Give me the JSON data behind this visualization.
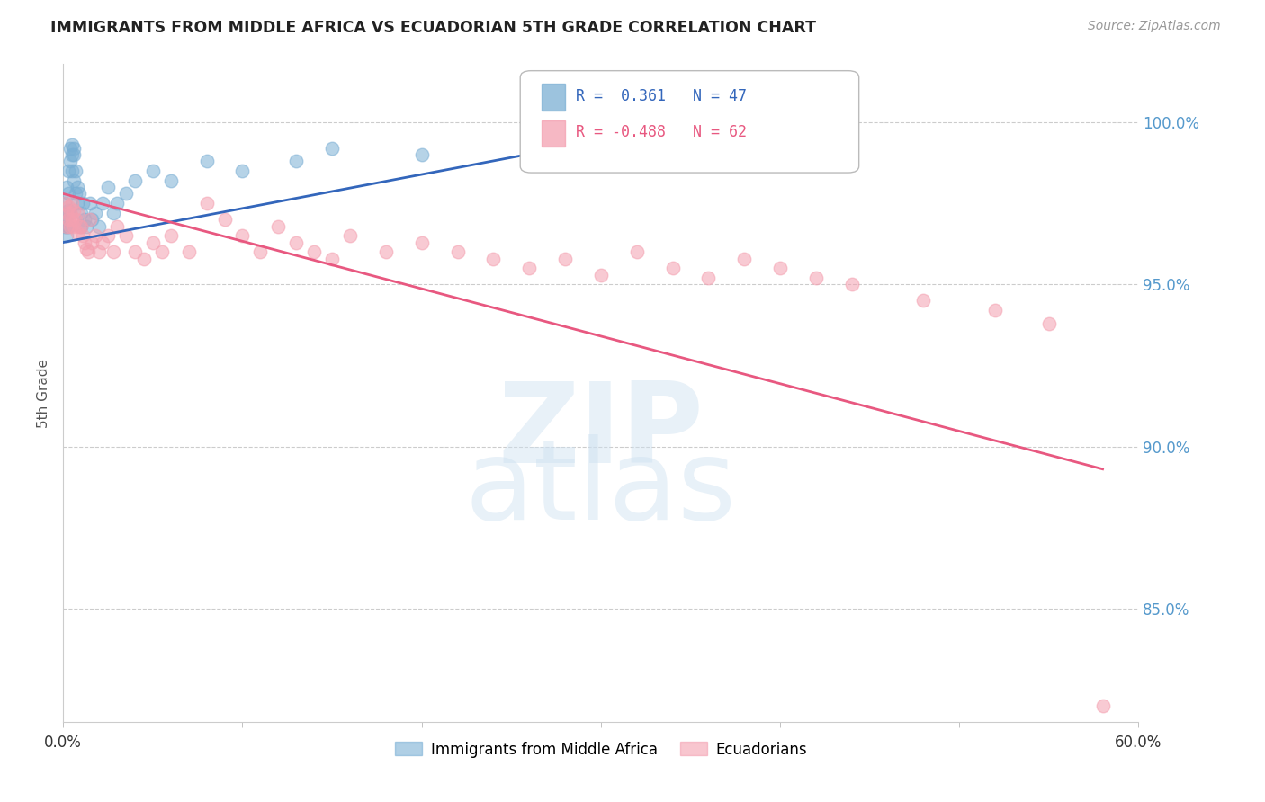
{
  "title": "IMMIGRANTS FROM MIDDLE AFRICA VS ECUADORIAN 5TH GRADE CORRELATION CHART",
  "source": "Source: ZipAtlas.com",
  "ylabel": "5th Grade",
  "ytick_labels": [
    "100.0%",
    "95.0%",
    "90.0%",
    "85.0%"
  ],
  "ytick_values": [
    1.0,
    0.95,
    0.9,
    0.85
  ],
  "xlim": [
    0.0,
    0.6
  ],
  "ylim": [
    0.815,
    1.018
  ],
  "blue_R": 0.361,
  "blue_N": 47,
  "pink_R": -0.488,
  "pink_N": 62,
  "legend_blue": "Immigrants from Middle Africa",
  "legend_pink": "Ecuadorians",
  "blue_color": "#7BAFD4",
  "pink_color": "#F4A0B0",
  "blue_line_color": "#3366BB",
  "pink_line_color": "#E85880",
  "title_color": "#222222",
  "source_color": "#999999",
  "axis_label_color": "#555555",
  "ytick_color": "#5599CC",
  "blue_scatter_x": [
    0.001,
    0.001,
    0.001,
    0.002,
    0.002,
    0.002,
    0.002,
    0.003,
    0.003,
    0.003,
    0.003,
    0.004,
    0.004,
    0.004,
    0.005,
    0.005,
    0.005,
    0.006,
    0.006,
    0.006,
    0.007,
    0.007,
    0.008,
    0.008,
    0.009,
    0.01,
    0.01,
    0.011,
    0.012,
    0.013,
    0.015,
    0.016,
    0.018,
    0.02,
    0.022,
    0.025,
    0.028,
    0.03,
    0.035,
    0.04,
    0.05,
    0.06,
    0.08,
    0.1,
    0.13,
    0.15,
    0.2
  ],
  "blue_scatter_y": [
    0.975,
    0.97,
    0.968,
    0.98,
    0.972,
    0.968,
    0.965,
    0.985,
    0.978,
    0.973,
    0.968,
    0.992,
    0.988,
    0.972,
    0.993,
    0.99,
    0.985,
    0.992,
    0.99,
    0.982,
    0.985,
    0.978,
    0.98,
    0.975,
    0.978,
    0.972,
    0.968,
    0.975,
    0.97,
    0.968,
    0.975,
    0.97,
    0.972,
    0.968,
    0.975,
    0.98,
    0.972,
    0.975,
    0.978,
    0.982,
    0.985,
    0.982,
    0.988,
    0.985,
    0.988,
    0.992,
    0.99
  ],
  "pink_scatter_x": [
    0.001,
    0.002,
    0.002,
    0.003,
    0.003,
    0.004,
    0.004,
    0.005,
    0.005,
    0.006,
    0.006,
    0.007,
    0.008,
    0.008,
    0.009,
    0.01,
    0.011,
    0.012,
    0.013,
    0.014,
    0.015,
    0.016,
    0.018,
    0.02,
    0.022,
    0.025,
    0.028,
    0.03,
    0.035,
    0.04,
    0.045,
    0.05,
    0.055,
    0.06,
    0.07,
    0.08,
    0.09,
    0.1,
    0.11,
    0.12,
    0.13,
    0.14,
    0.15,
    0.16,
    0.18,
    0.2,
    0.22,
    0.24,
    0.26,
    0.28,
    0.3,
    0.32,
    0.34,
    0.36,
    0.38,
    0.4,
    0.42,
    0.44,
    0.48,
    0.52,
    0.55,
    0.58
  ],
  "pink_scatter_y": [
    0.975,
    0.972,
    0.968,
    0.974,
    0.97,
    0.972,
    0.968,
    0.975,
    0.97,
    0.973,
    0.968,
    0.97,
    0.966,
    0.972,
    0.968,
    0.968,
    0.965,
    0.963,
    0.961,
    0.96,
    0.97,
    0.963,
    0.965,
    0.96,
    0.963,
    0.965,
    0.96,
    0.968,
    0.965,
    0.96,
    0.958,
    0.963,
    0.96,
    0.965,
    0.96,
    0.975,
    0.97,
    0.965,
    0.96,
    0.968,
    0.963,
    0.96,
    0.958,
    0.965,
    0.96,
    0.963,
    0.96,
    0.958,
    0.955,
    0.958,
    0.953,
    0.96,
    0.955,
    0.952,
    0.958,
    0.955,
    0.952,
    0.95,
    0.945,
    0.942,
    0.938,
    0.82
  ],
  "blue_line_x": [
    0.0,
    0.42
  ],
  "blue_line_y": [
    0.963,
    1.007
  ],
  "pink_line_x": [
    0.0,
    0.58
  ],
  "pink_line_y": [
    0.978,
    0.893
  ]
}
